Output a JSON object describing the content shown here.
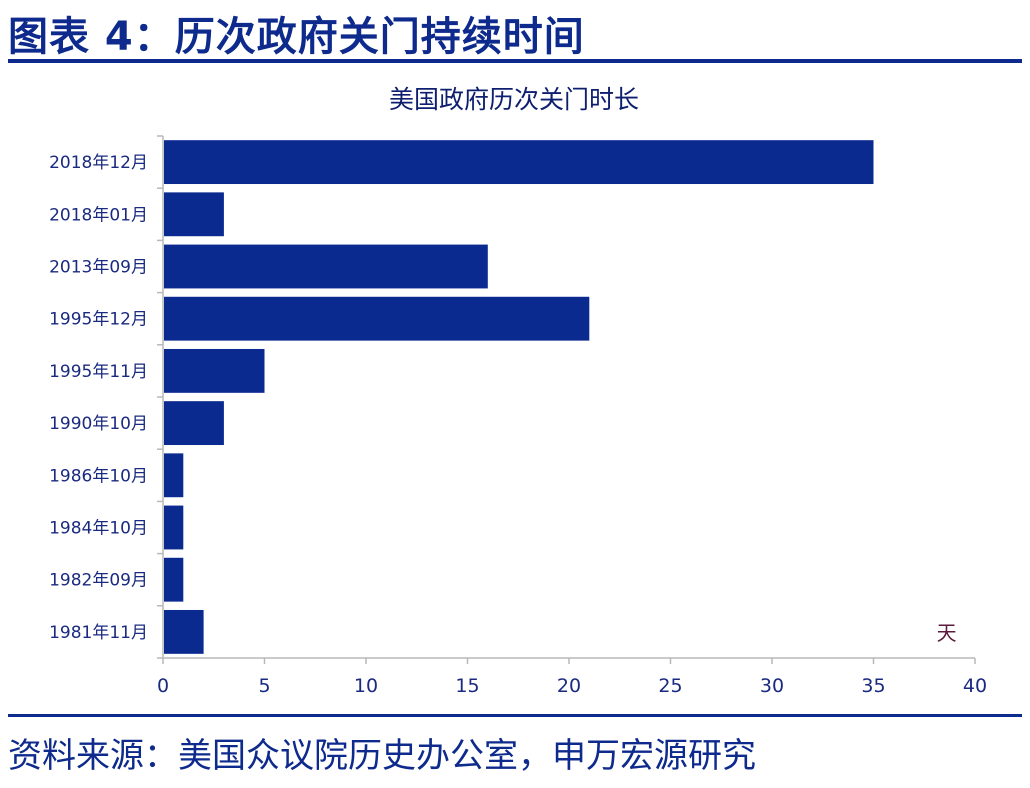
{
  "figure": {
    "title": "图表 4：历次政府关门持续时间",
    "source": "资料来源：美国众议院历史办公室，申万宏源研究"
  },
  "colors": {
    "bar": "#0b2a8f",
    "axis": "#b8b8b8",
    "title": "#0d2a8c"
  },
  "chart_data": {
    "type": "bar",
    "orientation": "horizontal",
    "title": "美国政府历次关门时长",
    "xlabel": "天",
    "ylabel": "",
    "categories": [
      "2018年12月",
      "2018年01月",
      "2013年09月",
      "1995年12月",
      "1995年11月",
      "1990年10月",
      "1986年10月",
      "1984年10月",
      "1982年09月",
      "1981年11月"
    ],
    "values": [
      35,
      3,
      16,
      21,
      5,
      3,
      1,
      1,
      1,
      2
    ],
    "xlim": [
      0,
      40
    ],
    "xticks": [
      "0",
      "5",
      "10",
      "15",
      "20",
      "25",
      "30",
      "35",
      "40"
    ],
    "grid": false,
    "legend": "none"
  }
}
